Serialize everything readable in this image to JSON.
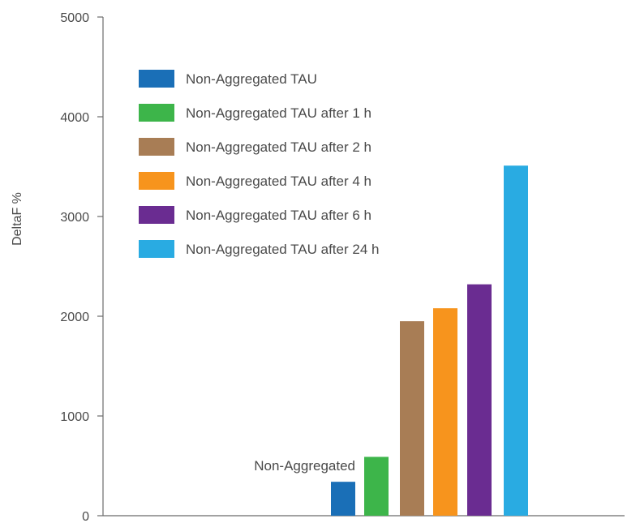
{
  "chart_data": {
    "type": "bar",
    "ylabel": "DeltaF %",
    "ylim": [
      0,
      5000
    ],
    "yticks": [
      0,
      1000,
      2000,
      3000,
      4000,
      5000
    ],
    "grid": false,
    "legend_position": "top-left",
    "annotation": "Non-Aggregated",
    "series": [
      {
        "name": "Non-Aggregated TAU",
        "value": 340,
        "color": "#1a6fb7"
      },
      {
        "name": "Non-Aggregated TAU after 1 h",
        "value": 590,
        "color": "#3db54a"
      },
      {
        "name": "Non-Aggregated TAU after 2 h",
        "value": 1950,
        "color": "#a87d55"
      },
      {
        "name": "Non-Aggregated TAU after 4 h",
        "value": 2080,
        "color": "#f7941d"
      },
      {
        "name": "Non-Aggregated TAU after 6 h",
        "value": 2320,
        "color": "#6a2c91"
      },
      {
        "name": "Non-Aggregated TAU after 24 h",
        "value": 3510,
        "color": "#29abe2"
      }
    ]
  }
}
